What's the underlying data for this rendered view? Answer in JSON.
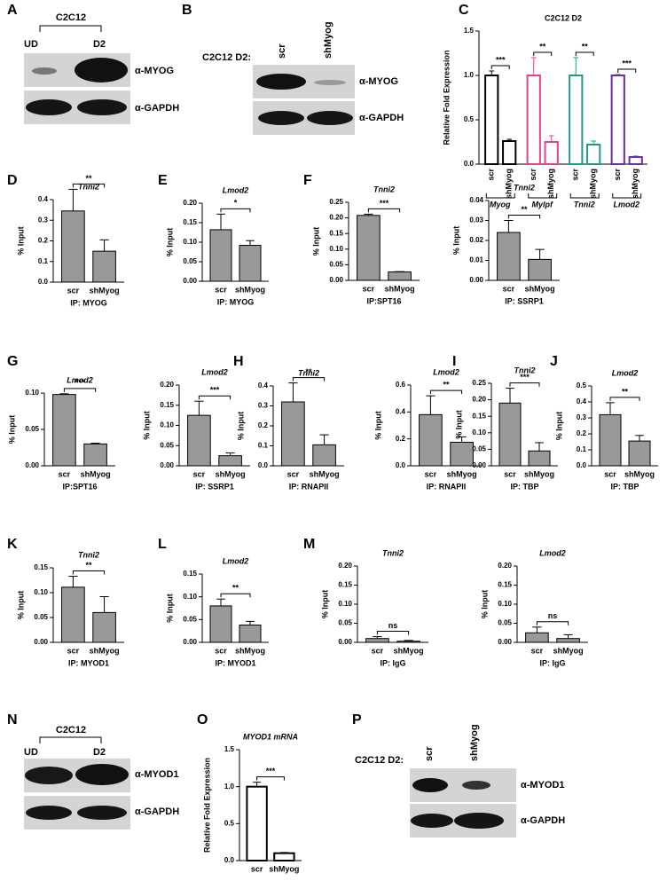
{
  "panel_letters": [
    "A",
    "B",
    "C",
    "D",
    "E",
    "F",
    "G",
    "H",
    "I",
    "J",
    "K",
    "L",
    "M",
    "N",
    "O",
    "P"
  ],
  "blots": [
    {
      "header": "C2C12",
      "lanes": [
        "UD",
        "D2"
      ],
      "antibodies": [
        "α-MYOG",
        "α-GAPDH"
      ]
    },
    {
      "prefix": "C2C12 D2:",
      "lanes": [
        "scr",
        "shMyog"
      ],
      "antibodies": [
        "α-MYOG",
        "α-GAPDH"
      ]
    },
    {
      "header": "C2C12",
      "lanes": [
        "UD",
        "D2"
      ],
      "antibodies": [
        "α-MYOD1",
        "α-GAPDH"
      ]
    },
    {
      "prefix": "C2C12 D2:",
      "lanes": [
        "scr",
        "shMyog"
      ],
      "antibodies": [
        "α-MYOD1",
        "α-GAPDH"
      ]
    }
  ],
  "chart_data": [
    {
      "type": "bar",
      "title": "C2C12 D2",
      "ylabel": "Relative Fold Expression",
      "style": "outline",
      "categories": [
        "scr",
        "shMyog"
      ],
      "series": [
        {
          "name": "Myog",
          "color": "#000000",
          "values": [
            1.0,
            0.26
          ],
          "errors": [
            0.05,
            0.02
          ],
          "significance": "***"
        },
        {
          "name": "Mylpf",
          "color": "#e8408a",
          "values": [
            1.0,
            0.25
          ],
          "errors": [
            0.2,
            0.07
          ],
          "significance": "**"
        },
        {
          "name": "Tnni2",
          "color": "#1a9e8a",
          "values": [
            1.0,
            0.22
          ],
          "errors": [
            0.2,
            0.04
          ],
          "significance": "**"
        },
        {
          "name": "Lmod2",
          "color": "#6a2ea0",
          "values": [
            1.0,
            0.08
          ],
          "errors": [
            0.01,
            0.01
          ],
          "significance": "***"
        }
      ],
      "ylim": [
        0,
        1.5
      ],
      "yticks": [
        {
          "value": 0,
          "label": "0.0"
        },
        0.5,
        {
          "value": 1,
          "label": "1.0"
        },
        1.5
      ]
    },
    {
      "type": "bar",
      "title": "Tnni2",
      "ylabel": "% Input",
      "xlabel": "IP: MYOG",
      "style": "filled",
      "color": "#999999",
      "categories": [
        "scr",
        "shMyog"
      ],
      "values": [
        0.345,
        0.15
      ],
      "errors": [
        0.105,
        0.055
      ],
      "significance": "**",
      "ylim": [
        0,
        0.4
      ],
      "yticks": [
        {
          "value": 0,
          "label": "0.0"
        },
        0.1,
        0.2,
        0.3,
        0.4
      ]
    },
    {
      "type": "bar",
      "title": "Lmod2",
      "ylabel": "% Input",
      "xlabel": "IP: MYOG",
      "style": "filled",
      "color": "#999999",
      "categories": [
        "scr",
        "shMyog"
      ],
      "values": [
        0.132,
        0.092
      ],
      "errors": [
        0.04,
        0.012
      ],
      "significance": "*",
      "ylim": [
        0,
        0.2
      ],
      "yticks": [
        {
          "value": 0,
          "label": "0.00"
        },
        0.05,
        {
          "value": 0.1,
          "label": "0.10"
        },
        0.15,
        {
          "value": 0.2,
          "label": "0.20"
        }
      ]
    },
    {
      "type": "bar",
      "title": "Tnni2",
      "ylabel": "% Input",
      "xlabel": "IP:SPT16",
      "style": "filled",
      "color": "#999999",
      "categories": [
        "scr",
        "shMyog"
      ],
      "values": [
        0.208,
        0.027
      ],
      "errors": [
        0.004,
        0.001
      ],
      "significance": "***",
      "ylim": [
        0,
        0.25
      ],
      "yticks": [
        {
          "value": 0,
          "label": "0.00"
        },
        0.05,
        {
          "value": 0.1,
          "label": "0.10"
        },
        0.15,
        {
          "value": 0.2,
          "label": "0.20"
        },
        0.25
      ]
    },
    {
      "type": "bar",
      "title": "Tnni2",
      "ylabel": "% Input",
      "xlabel": "IP: SSRP1",
      "style": "filled",
      "color": "#999999",
      "categories": [
        "scr",
        "shMyog"
      ],
      "values": [
        0.024,
        0.0105
      ],
      "errors": [
        0.006,
        0.005
      ],
      "significance": "**",
      "ylim": [
        0,
        0.04
      ],
      "yticks": [
        {
          "value": 0,
          "label": "0.00"
        },
        0.01,
        0.02,
        0.03,
        0.04
      ]
    },
    {
      "type": "bar",
      "title": "Lmod2",
      "ylabel": "% Input",
      "xlabel": "IP:SPT16",
      "style": "filled",
      "color": "#999999",
      "categories": [
        "scr",
        "shMyog"
      ],
      "values": [
        0.098,
        0.03
      ],
      "errors": [
        0.001,
        0.001
      ],
      "significance": "***",
      "ylim": [
        0,
        0.1
      ],
      "yticks": [
        {
          "value": 0,
          "label": "0.00"
        },
        0.05,
        {
          "value": 0.1,
          "label": "0.10"
        }
      ]
    },
    {
      "type": "bar",
      "title": "Lmod2",
      "ylabel": "% Input",
      "xlabel": "IP: SSRP1",
      "style": "filled",
      "color": "#999999",
      "categories": [
        "scr",
        "shMyog"
      ],
      "values": [
        0.125,
        0.025
      ],
      "errors": [
        0.035,
        0.007
      ],
      "significance": "***",
      "ylim": [
        0,
        0.2
      ],
      "yticks": [
        {
          "value": 0,
          "label": "0.00"
        },
        0.05,
        {
          "value": 0.1,
          "label": "0.10"
        },
        0.15,
        {
          "value": 0.2,
          "label": "0.20"
        }
      ]
    },
    {
      "type": "bar",
      "title": "Tnni2",
      "ylabel": "% Input",
      "xlabel": "IP: RNAPII",
      "style": "filled",
      "color": "#999999",
      "categories": [
        "scr",
        "shMyog"
      ],
      "values": [
        0.32,
        0.105
      ],
      "errors": [
        0.095,
        0.05
      ],
      "significance": "**",
      "ylim": [
        0,
        0.4
      ],
      "yticks": [
        {
          "value": 0,
          "label": "0.0"
        },
        0.1,
        0.2,
        0.3,
        0.4
      ]
    },
    {
      "type": "bar",
      "title": "Lmod2",
      "ylabel": "% Input",
      "xlabel": "IP: RNAPII",
      "style": "filled",
      "color": "#999999",
      "categories": [
        "scr",
        "shMyog"
      ],
      "values": [
        0.38,
        0.175
      ],
      "errors": [
        0.14,
        0.04
      ],
      "significance": "**",
      "ylim": [
        0,
        0.6
      ],
      "yticks": [
        {
          "value": 0,
          "label": "0.0"
        },
        0.2,
        0.4,
        0.6
      ]
    },
    {
      "type": "bar",
      "title": "Tnni2",
      "ylabel": "% Input",
      "xlabel": "IP: TBP",
      "style": "filled",
      "color": "#999999",
      "categories": [
        "scr",
        "shMyog"
      ],
      "values": [
        0.19,
        0.045
      ],
      "errors": [
        0.045,
        0.025
      ],
      "significance": "***",
      "ylim": [
        0,
        0.25
      ],
      "yticks": [
        {
          "value": 0,
          "label": "0.00"
        },
        0.05,
        {
          "value": 0.1,
          "label": "0.10"
        },
        0.15,
        {
          "value": 0.2,
          "label": "0.20"
        },
        0.25
      ]
    },
    {
      "type": "bar",
      "title": "Lmod2",
      "ylabel": "% Input",
      "xlabel": "IP: TBP",
      "style": "filled",
      "color": "#999999",
      "categories": [
        "scr",
        "shMyog"
      ],
      "values": [
        0.32,
        0.155
      ],
      "errors": [
        0.075,
        0.035
      ],
      "significance": "**",
      "ylim": [
        0,
        0.5
      ],
      "yticks": [
        {
          "value": 0,
          "label": "0.0"
        },
        0.1,
        0.2,
        0.3,
        0.4,
        0.5
      ]
    },
    {
      "type": "bar",
      "title": "Tnni2",
      "ylabel": "% Input",
      "xlabel": "IP: MYOD1",
      "style": "filled",
      "color": "#999999",
      "categories": [
        "scr",
        "shMyog"
      ],
      "values": [
        0.111,
        0.06
      ],
      "errors": [
        0.022,
        0.032
      ],
      "significance": "**",
      "ylim": [
        0,
        0.15
      ],
      "yticks": [
        {
          "value": 0,
          "label": "0.00"
        },
        0.05,
        {
          "value": 0.1,
          "label": "0.10"
        },
        0.15
      ]
    },
    {
      "type": "bar",
      "title": "Lmod2",
      "ylabel": "% Input",
      "xlabel": "IP: MYOD1",
      "style": "filled",
      "color": "#999999",
      "categories": [
        "scr",
        "shMyog"
      ],
      "values": [
        0.08,
        0.038
      ],
      "errors": [
        0.015,
        0.008
      ],
      "significance": "**",
      "ylim": [
        0,
        0.15
      ],
      "yticks": [
        {
          "value": 0,
          "label": "0.00"
        },
        0.05,
        {
          "value": 0.1,
          "label": "0.10"
        },
        0.15
      ]
    },
    {
      "type": "bar",
      "title": "Tnni2",
      "ylabel": "% Input",
      "xlabel": "IP: IgG",
      "style": "filled",
      "color": "#999999",
      "categories": [
        "scr",
        "shMyog"
      ],
      "values": [
        0.01,
        0.003
      ],
      "errors": [
        0.005,
        0.002
      ],
      "significance": "ns",
      "ylim": [
        0,
        0.2
      ],
      "yticks": [
        {
          "value": 0,
          "label": "0.00"
        },
        0.05,
        {
          "value": 0.1,
          "label": "0.10"
        },
        0.15,
        {
          "value": 0.2,
          "label": "0.20"
        }
      ]
    },
    {
      "type": "bar",
      "title": "Lmod2",
      "ylabel": "% Input",
      "xlabel": "IP: IgG",
      "style": "filled",
      "color": "#999999",
      "categories": [
        "scr",
        "shMyog"
      ],
      "values": [
        0.025,
        0.01
      ],
      "errors": [
        0.015,
        0.01
      ],
      "significance": "ns",
      "ylim": [
        0,
        0.2
      ],
      "yticks": [
        {
          "value": 0,
          "label": "0.00"
        },
        0.05,
        {
          "value": 0.1,
          "label": "0.10"
        },
        0.15,
        {
          "value": 0.2,
          "label": "0.20"
        }
      ]
    },
    {
      "type": "bar",
      "title": "MYOD1 mRNA",
      "ylabel": "Relative Fold Expression",
      "style": "outline",
      "color": "#000000",
      "categories": [
        "scr",
        "shMyog"
      ],
      "values": [
        1.0,
        0.1
      ],
      "errors": [
        0.06,
        0.01
      ],
      "significance": "***",
      "ylim": [
        0,
        1.5
      ],
      "yticks": [
        {
          "value": 0,
          "label": "0.0"
        },
        0.5,
        {
          "value": 1,
          "label": "1.0"
        },
        1.5
      ]
    }
  ]
}
